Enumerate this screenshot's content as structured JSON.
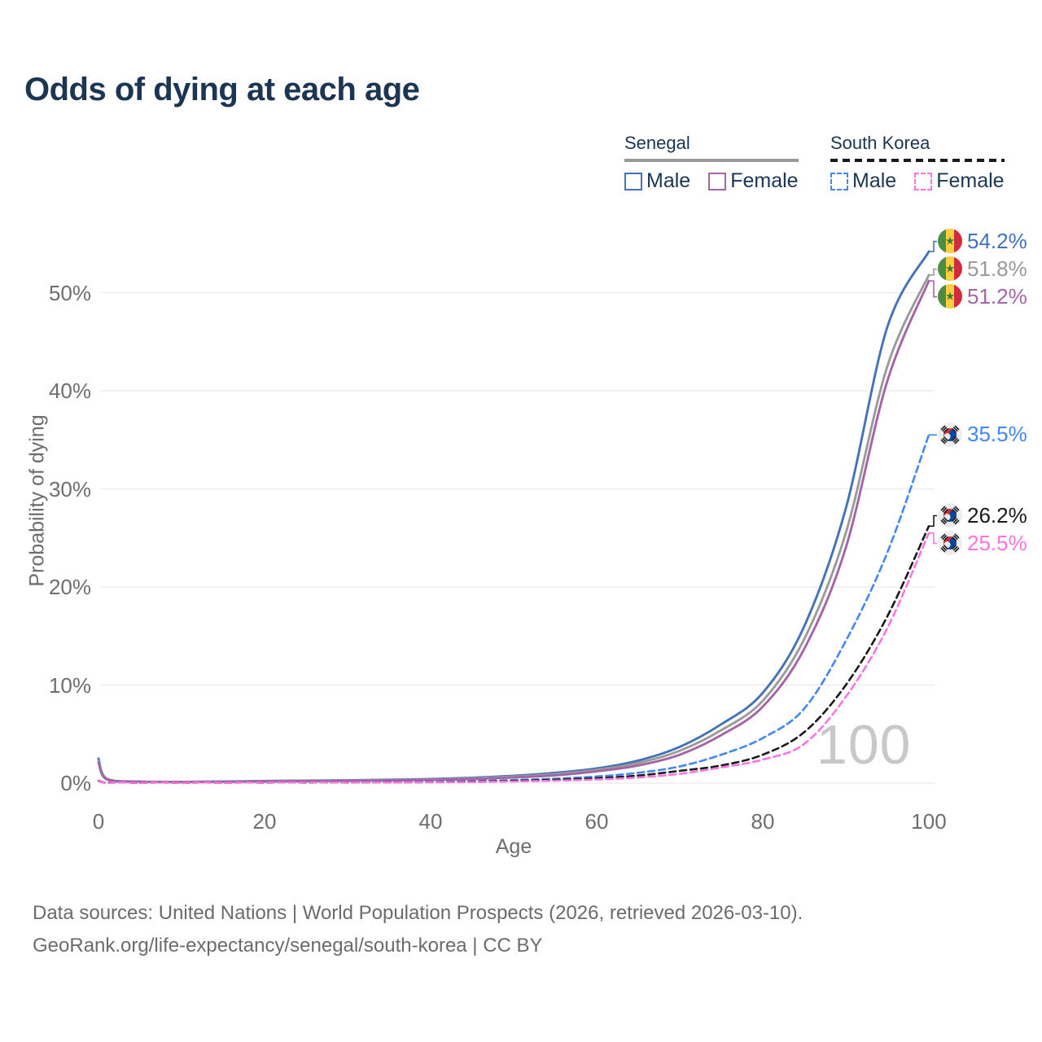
{
  "title": "Odds of dying at each age",
  "legend": {
    "groups": [
      {
        "name": "Senegal",
        "underline_style": "solid",
        "underline_color": "#9a9a9a",
        "items": [
          {
            "label": "Male",
            "color": "#4472b8",
            "dash": "solid"
          },
          {
            "label": "Female",
            "color": "#a565a5",
            "dash": "solid"
          }
        ]
      },
      {
        "name": "South Korea",
        "underline_style": "dashed",
        "underline_color": "#1a1a1a",
        "items": [
          {
            "label": "Male",
            "color": "#4387f1",
            "dash": "dashed"
          },
          {
            "label": "Female",
            "color": "#fc74df",
            "dash": "dashed"
          }
        ]
      }
    ]
  },
  "watermark": "100",
  "chart_data": {
    "type": "line",
    "title": "Odds of dying at each age",
    "xlabel": "Age",
    "ylabel": "Probability of dying",
    "xlim": [
      0,
      100
    ],
    "ylim": [
      0,
      56
    ],
    "grid": "horizontal",
    "x_ticks": [
      {
        "value": 0,
        "label": "0"
      },
      {
        "value": 20,
        "label": "20"
      },
      {
        "value": 40,
        "label": "40"
      },
      {
        "value": 60,
        "label": "60"
      },
      {
        "value": 80,
        "label": "80"
      },
      {
        "value": 100,
        "label": "100"
      }
    ],
    "y_ticks": [
      {
        "value": 0,
        "label": "0%"
      },
      {
        "value": 10,
        "label": "10%"
      },
      {
        "value": 20,
        "label": "20%"
      },
      {
        "value": 30,
        "label": "30%"
      },
      {
        "value": 40,
        "label": "40%"
      },
      {
        "value": 50,
        "label": "50%"
      }
    ],
    "hover_age": "100",
    "ages": [
      0,
      1,
      5,
      10,
      15,
      20,
      25,
      30,
      35,
      40,
      45,
      50,
      55,
      60,
      65,
      70,
      75,
      80,
      85,
      90,
      95,
      100
    ],
    "series": [
      {
        "id": "senegal-male",
        "name": "Senegal Male",
        "color": "#4472b8",
        "dash": "solid",
        "flag": "senegal",
        "end_label": "54.2%",
        "values": [
          2.5,
          0.45,
          0.16,
          0.13,
          0.17,
          0.22,
          0.26,
          0.3,
          0.35,
          0.42,
          0.55,
          0.75,
          1.05,
          1.5,
          2.3,
          3.7,
          6.0,
          9.2,
          16.0,
          28.0,
          46.5,
          54.2
        ]
      },
      {
        "id": "senegal-both",
        "name": "Senegal",
        "color": "#9a9a9a",
        "dash": "solid",
        "flag": "senegal",
        "end_label": "51.8%",
        "values": [
          2.3,
          0.42,
          0.15,
          0.12,
          0.15,
          0.19,
          0.23,
          0.27,
          0.31,
          0.37,
          0.48,
          0.66,
          0.92,
          1.35,
          2.05,
          3.3,
          5.4,
          8.4,
          14.7,
          25.5,
          42.5,
          51.8
        ]
      },
      {
        "id": "senegal-female",
        "name": "Senegal Female",
        "color": "#a565a5",
        "dash": "solid",
        "flag": "senegal",
        "end_label": "51.2%",
        "values": [
          2.1,
          0.38,
          0.14,
          0.11,
          0.13,
          0.16,
          0.2,
          0.23,
          0.27,
          0.32,
          0.41,
          0.57,
          0.8,
          1.2,
          1.8,
          2.9,
          4.9,
          7.8,
          13.7,
          24.0,
          41.0,
          51.2
        ]
      },
      {
        "id": "south-korea-male",
        "name": "South Korea Male",
        "color": "#4387f1",
        "dash": "dashed",
        "flag": "south-korea",
        "end_label": "35.5%",
        "values": [
          0.25,
          0.03,
          0.01,
          0.01,
          0.03,
          0.05,
          0.06,
          0.08,
          0.1,
          0.13,
          0.2,
          0.31,
          0.46,
          0.68,
          1.05,
          1.7,
          2.9,
          4.6,
          7.6,
          14.5,
          23.5,
          35.5
        ]
      },
      {
        "id": "south-korea-both",
        "name": "South Korea",
        "color": "#1a1a1a",
        "dash": "dashed",
        "flag": "south-korea",
        "end_label": "26.2%",
        "values": [
          0.22,
          0.03,
          0.01,
          0.01,
          0.02,
          0.04,
          0.05,
          0.06,
          0.08,
          0.1,
          0.15,
          0.23,
          0.34,
          0.5,
          0.77,
          1.25,
          1.8,
          2.9,
          5.2,
          10.0,
          17.0,
          26.2
        ]
      },
      {
        "id": "south-korea-female",
        "name": "South Korea Female",
        "color": "#fc74df",
        "dash": "dashed",
        "flag": "south-korea",
        "end_label": "25.5%",
        "values": [
          0.2,
          0.02,
          0.01,
          0.01,
          0.02,
          0.03,
          0.04,
          0.05,
          0.06,
          0.08,
          0.11,
          0.17,
          0.25,
          0.37,
          0.57,
          0.95,
          1.6,
          2.4,
          4.0,
          8.8,
          15.8,
          25.5
        ]
      }
    ]
  },
  "footer": {
    "line1": "Data sources: United Nations | World Population Prospects (2026, retrieved 2026-03-10).",
    "line2": "GeoRank.org/life-expectancy/senegal/south-korea | CC BY"
  }
}
